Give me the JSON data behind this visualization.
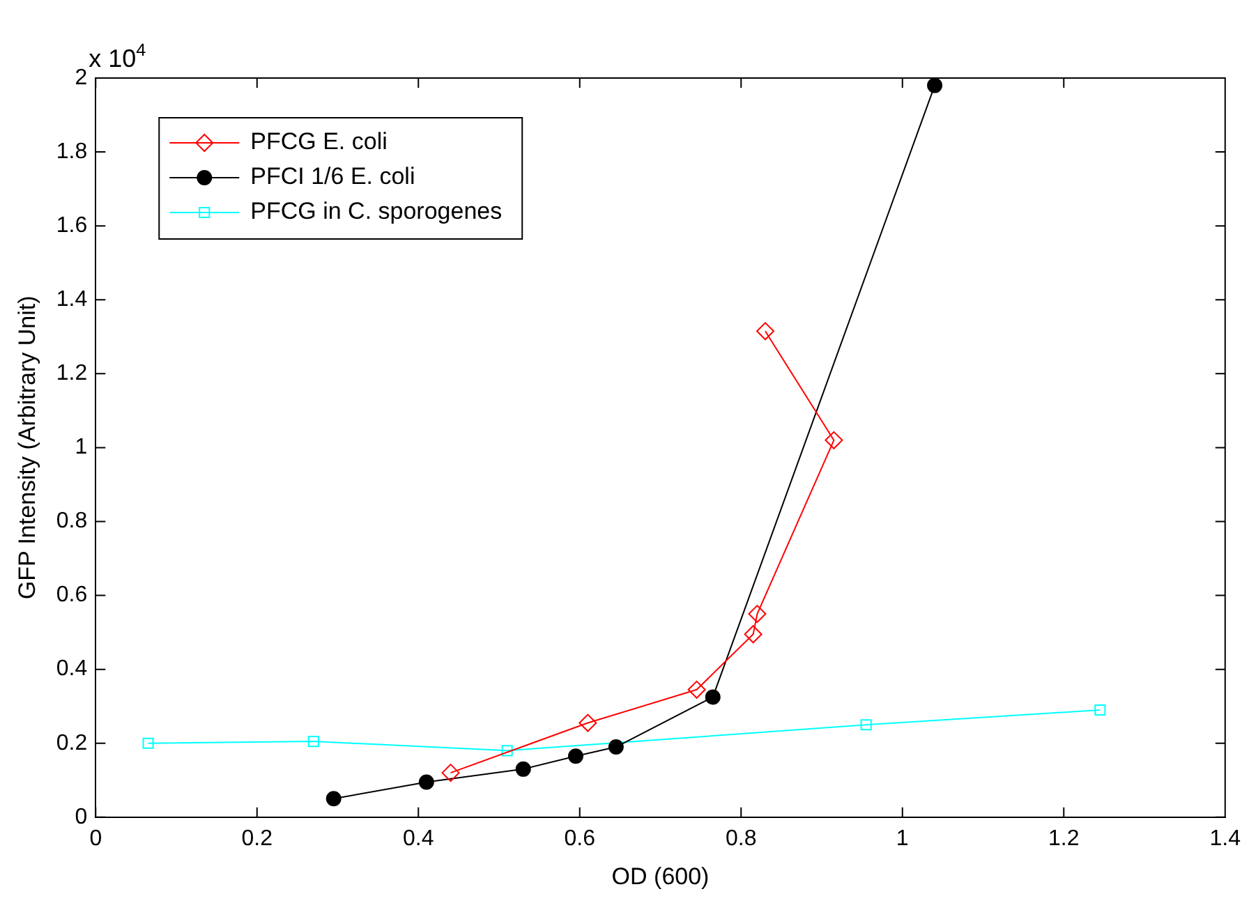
{
  "chart_data": {
    "type": "line",
    "xlabel": "OD (600)",
    "ylabel": "GFP Intensity (Arbitrary Unit)",
    "annotations": [
      "x 10$^{4}$"
    ],
    "xlim": [
      0,
      1.4
    ],
    "xticks": [
      0,
      0.2,
      0.4,
      0.6,
      0.8,
      1,
      1.2,
      1.4
    ],
    "ylim": [
      0,
      2
    ],
    "yticks": [
      0,
      0.2,
      0.4,
      0.6,
      0.8,
      1,
      1.2,
      1.4,
      1.6,
      1.8,
      2
    ],
    "grid": false,
    "legend": "top left",
    "series": [
      {
        "name": "PFCG E. coli",
        "color": "#ff0000",
        "marker": "diamond",
        "x": [
          0.44,
          0.61,
          0.745,
          0.815,
          0.82,
          0.915,
          0.83
        ],
        "values": [
          0.12,
          0.255,
          0.345,
          0.495,
          0.55,
          1.02,
          1.315
        ]
      },
      {
        "name": "PFCI 1/6 E. coli",
        "color": "#000000",
        "marker": "circle",
        "x": [
          0.295,
          0.41,
          0.53,
          0.595,
          0.645,
          0.765,
          1.04
        ],
        "values": [
          0.05,
          0.095,
          0.13,
          0.165,
          0.19,
          0.325,
          1.98
        ]
      },
      {
        "name": "PFCG in C. sporogenes",
        "color": "#00ffff",
        "marker": "square",
        "x": [
          0.065,
          0.27,
          0.51,
          0.955,
          1.245
        ],
        "values": [
          0.2,
          0.205,
          0.18,
          0.25,
          0.29
        ]
      }
    ]
  }
}
